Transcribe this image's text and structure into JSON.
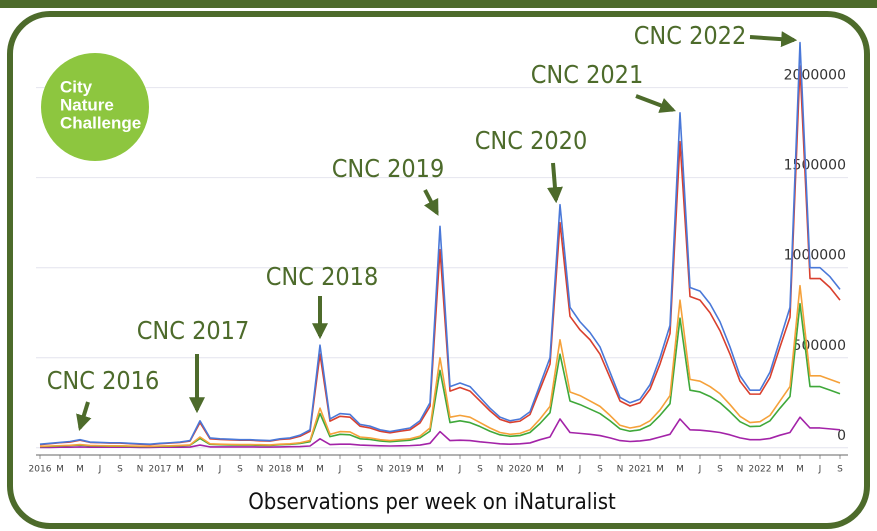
{
  "chart_data": {
    "type": "line",
    "caption": "Observations per week on iNaturalist",
    "logo": [
      "City",
      "Nature",
      "Challenge"
    ],
    "x": [
      "2016-01",
      "2016-02",
      "2016-03",
      "2016-04",
      "2016-05",
      "2016-06",
      "2016-07",
      "2016-08",
      "2016-09",
      "2016-10",
      "2016-11",
      "2016-12",
      "2017-01",
      "2017-02",
      "2017-03",
      "2017-04",
      "2017-05",
      "2017-06",
      "2017-07",
      "2017-08",
      "2017-09",
      "2017-10",
      "2017-11",
      "2017-12",
      "2018-01",
      "2018-02",
      "2018-03",
      "2018-04",
      "2018-05",
      "2018-06",
      "2018-07",
      "2018-08",
      "2018-09",
      "2018-10",
      "2018-11",
      "2018-12",
      "2019-01",
      "2019-02",
      "2019-03",
      "2019-04",
      "2019-05",
      "2019-06",
      "2019-07",
      "2019-08",
      "2019-09",
      "2019-10",
      "2019-11",
      "2019-12",
      "2020-01",
      "2020-02",
      "2020-03",
      "2020-04",
      "2020-05",
      "2020-06",
      "2020-07",
      "2020-08",
      "2020-09",
      "2020-10",
      "2020-11",
      "2020-12",
      "2021-01",
      "2021-02",
      "2021-03",
      "2021-04",
      "2021-05",
      "2021-06",
      "2021-07",
      "2021-08",
      "2021-09",
      "2021-10",
      "2021-11",
      "2021-12",
      "2022-01",
      "2022-02",
      "2022-03",
      "2022-04",
      "2022-05",
      "2022-06",
      "2022-07",
      "2022-08",
      "2022-09"
    ],
    "series": [
      {
        "color": "#4a78d8",
        "values": [
          20000,
          25000,
          30000,
          35000,
          45000,
          32000,
          30000,
          28000,
          28000,
          25000,
          22000,
          20000,
          25000,
          28000,
          32000,
          40000,
          150000,
          55000,
          50000,
          48000,
          45000,
          45000,
          42000,
          40000,
          50000,
          55000,
          70000,
          100000,
          570000,
          160000,
          190000,
          185000,
          130000,
          120000,
          100000,
          90000,
          100000,
          110000,
          150000,
          250000,
          1230000,
          340000,
          360000,
          340000,
          280000,
          220000,
          170000,
          150000,
          160000,
          200000,
          350000,
          500000,
          1350000,
          780000,
          700000,
          640000,
          560000,
          420000,
          280000,
          250000,
          270000,
          350000,
          500000,
          680000,
          1860000,
          890000,
          870000,
          800000,
          700000,
          560000,
          400000,
          320000,
          320000,
          420000,
          600000,
          780000,
          2250000,
          1000000,
          1000000,
          950000,
          880000
        ]
      },
      {
        "color": "#d9402e",
        "values": [
          18000,
          23000,
          28000,
          32000,
          42000,
          30000,
          28000,
          26000,
          26000,
          23000,
          20000,
          18000,
          23000,
          26000,
          30000,
          37000,
          140000,
          50000,
          46000,
          44000,
          42000,
          42000,
          39000,
          37000,
          46000,
          50000,
          64000,
          92000,
          520000,
          148000,
          175000,
          170000,
          120000,
          110000,
          92000,
          83000,
          92000,
          100000,
          138000,
          230000,
          1100000,
          315000,
          335000,
          315000,
          260000,
          205000,
          158000,
          140000,
          148000,
          185000,
          325000,
          465000,
          1250000,
          730000,
          655000,
          600000,
          520000,
          390000,
          260000,
          232000,
          250000,
          325000,
          465000,
          635000,
          1700000,
          840000,
          820000,
          750000,
          650000,
          520000,
          370000,
          298000,
          298000,
          390000,
          560000,
          725000,
          2120000,
          940000,
          940000,
          890000,
          820000
        ]
      },
      {
        "color": "#f5a13a",
        "values": [
          8000,
          10000,
          12000,
          14000,
          18000,
          13000,
          12000,
          11000,
          11000,
          10000,
          9000,
          8000,
          10000,
          11000,
          13000,
          16000,
          60000,
          22000,
          20000,
          19000,
          18000,
          18000,
          17000,
          16000,
          20000,
          22000,
          28000,
          40000,
          220000,
          75000,
          90000,
          88000,
          60000,
          55000,
          45000,
          40000,
          45000,
          50000,
          65000,
          110000,
          500000,
          170000,
          180000,
          170000,
          140000,
          110000,
          85000,
          75000,
          80000,
          100000,
          160000,
          230000,
          600000,
          310000,
          290000,
          260000,
          230000,
          180000,
          125000,
          110000,
          120000,
          150000,
          210000,
          290000,
          820000,
          380000,
          370000,
          340000,
          300000,
          240000,
          175000,
          140000,
          145000,
          180000,
          260000,
          340000,
          900000,
          400000,
          400000,
          380000,
          360000
        ]
      },
      {
        "color": "#3fa83a",
        "values": [
          7000,
          8000,
          10000,
          12000,
          15000,
          11000,
          10000,
          9000,
          9000,
          8000,
          7000,
          7000,
          8000,
          9000,
          11000,
          14000,
          52000,
          19000,
          17000,
          16000,
          15000,
          15000,
          14000,
          13000,
          17000,
          19000,
          24000,
          34000,
          190000,
          62000,
          75000,
          72000,
          50000,
          46000,
          38000,
          34000,
          38000,
          42000,
          55000,
          92000,
          430000,
          140000,
          150000,
          140000,
          118000,
          92000,
          72000,
          64000,
          68000,
          85000,
          135000,
          195000,
          520000,
          260000,
          240000,
          215000,
          190000,
          150000,
          105000,
          92000,
          100000,
          125000,
          180000,
          245000,
          720000,
          320000,
          310000,
          285000,
          250000,
          200000,
          145000,
          118000,
          120000,
          150000,
          220000,
          285000,
          800000,
          340000,
          340000,
          320000,
          300000
        ]
      },
      {
        "color": "#a323a8",
        "values": [
          2000,
          2000,
          3000,
          3000,
          5000,
          3000,
          3000,
          3000,
          3000,
          3000,
          2000,
          2000,
          3000,
          3000,
          3000,
          4000,
          15000,
          5000,
          5000,
          5000,
          5000,
          5000,
          4000,
          4000,
          5000,
          6000,
          7000,
          10000,
          50000,
          18000,
          20000,
          20000,
          15000,
          13000,
          11000,
          10000,
          11000,
          12000,
          15000,
          25000,
          90000,
          40000,
          42000,
          40000,
          33000,
          28000,
          22000,
          20000,
          22000,
          27000,
          45000,
          60000,
          160000,
          85000,
          80000,
          75000,
          68000,
          55000,
          40000,
          35000,
          38000,
          45000,
          60000,
          75000,
          160000,
          100000,
          98000,
          92000,
          85000,
          72000,
          55000,
          45000,
          45000,
          52000,
          70000,
          85000,
          170000,
          110000,
          110000,
          105000,
          100000
        ]
      }
    ],
    "ylim": [
      -40000,
      2320000
    ],
    "yticks": [
      0,
      500000,
      1000000,
      1500000,
      2000000
    ],
    "xticks": [
      {
        "value": "2016-01",
        "label": "2016"
      },
      {
        "value": "2016-03",
        "label": "M"
      },
      {
        "value": "2016-05",
        "label": "M"
      },
      {
        "value": "2016-07",
        "label": "J"
      },
      {
        "value": "2016-09",
        "label": "S"
      },
      {
        "value": "2016-11",
        "label": "N"
      },
      {
        "value": "2017-01",
        "label": "2017"
      },
      {
        "value": "2017-03",
        "label": "M"
      },
      {
        "value": "2017-05",
        "label": "M"
      },
      {
        "value": "2017-07",
        "label": "J"
      },
      {
        "value": "2017-09",
        "label": "S"
      },
      {
        "value": "2017-11",
        "label": "N"
      },
      {
        "value": "2018-01",
        "label": "2018"
      },
      {
        "value": "2018-03",
        "label": "M"
      },
      {
        "value": "2018-05",
        "label": "M"
      },
      {
        "value": "2018-07",
        "label": "J"
      },
      {
        "value": "2018-09",
        "label": "S"
      },
      {
        "value": "2018-11",
        "label": "N"
      },
      {
        "value": "2019-01",
        "label": "2019"
      },
      {
        "value": "2019-03",
        "label": "M"
      },
      {
        "value": "2019-05",
        "label": "M"
      },
      {
        "value": "2019-07",
        "label": "J"
      },
      {
        "value": "2019-09",
        "label": "S"
      },
      {
        "value": "2019-11",
        "label": "N"
      },
      {
        "value": "2020-01",
        "label": "2020"
      },
      {
        "value": "2020-03",
        "label": "M"
      },
      {
        "value": "2020-05",
        "label": "M"
      },
      {
        "value": "2020-07",
        "label": "J"
      },
      {
        "value": "2020-09",
        "label": "S"
      },
      {
        "value": "2020-11",
        "label": "N"
      },
      {
        "value": "2021-01",
        "label": "2021"
      },
      {
        "value": "2021-03",
        "label": "M"
      },
      {
        "value": "2021-05",
        "label": "M"
      },
      {
        "value": "2021-07",
        "label": "J"
      },
      {
        "value": "2021-09",
        "label": "S"
      },
      {
        "value": "2021-11",
        "label": "N"
      },
      {
        "value": "2022-01",
        "label": "2022"
      },
      {
        "value": "2022-03",
        "label": "M"
      },
      {
        "value": "2022-05",
        "label": "M"
      },
      {
        "value": "2022-07",
        "label": "J"
      },
      {
        "value": "2022-09",
        "label": "S"
      }
    ],
    "grid": true,
    "annotations": [
      {
        "text": "CNC 2016",
        "x": "2016-05"
      },
      {
        "text": "CNC 2017",
        "x": "2017-05"
      },
      {
        "text": "CNC 2018",
        "x": "2018-05"
      },
      {
        "text": "CNC 2019",
        "x": "2019-05"
      },
      {
        "text": "CNC 2020",
        "x": "2020-05"
      },
      {
        "text": "CNC 2021",
        "x": "2021-05"
      },
      {
        "text": "CNC 2022",
        "x": "2022-05"
      }
    ]
  }
}
